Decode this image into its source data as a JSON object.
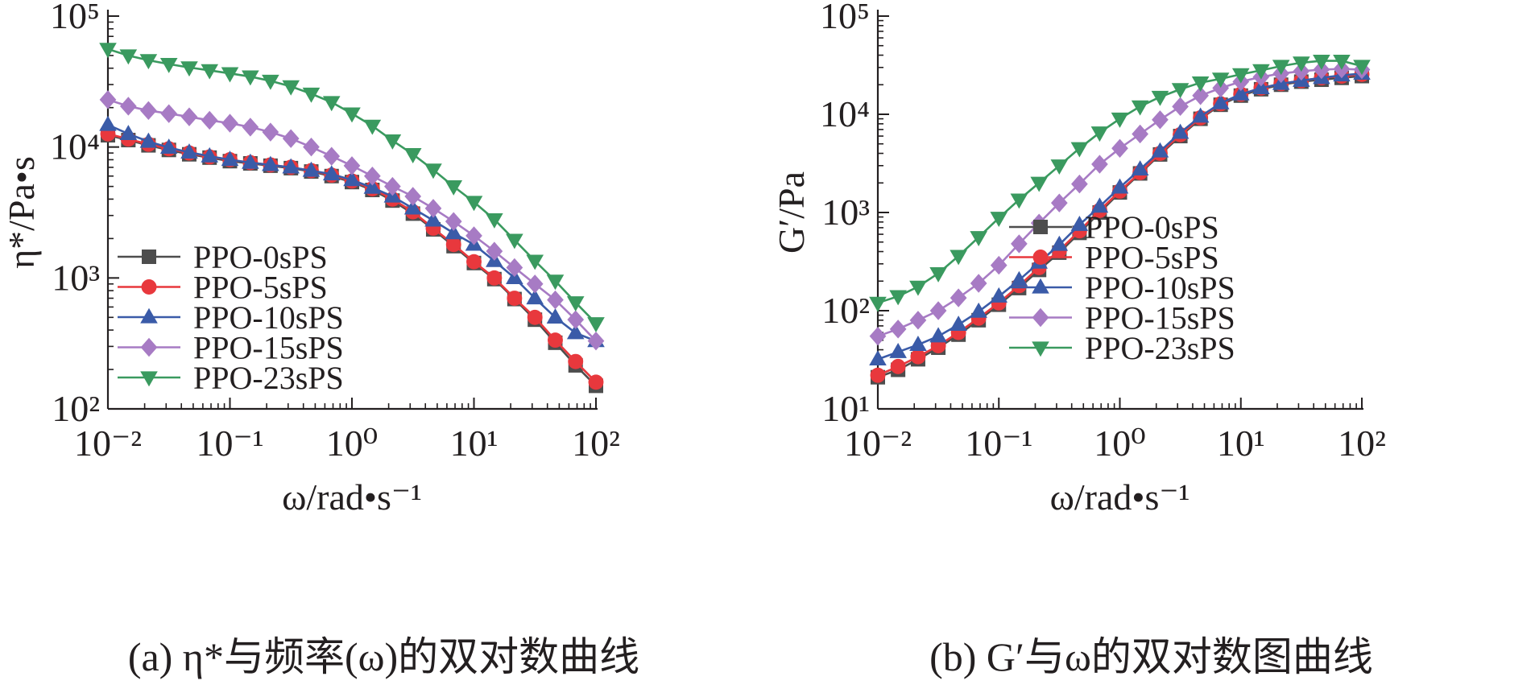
{
  "series_colors": {
    "PPO-0sPS": "#4d4d4d",
    "PPO-5sPS": "#e8383d",
    "PPO-10sPS": "#3a5ba8",
    "PPO-15sPS": "#a77bc4",
    "PPO-23sPS": "#3a9a5f"
  },
  "series_markers": {
    "PPO-0sPS": "square",
    "PPO-5sPS": "circle",
    "PPO-10sPS": "triangle-up",
    "PPO-15sPS": "diamond",
    "PPO-23sPS": "triangle-down"
  },
  "chart_data": [
    {
      "type": "line",
      "caption": "(a) η*与频率(ω)的双对数曲线",
      "xlabel": "ω/rad•s⁻¹",
      "ylabel": "η*/Pa•s",
      "xscale": "log",
      "yscale": "log",
      "xlim": [
        0.01,
        100
      ],
      "ylim": [
        100,
        100000
      ],
      "xticks": [
        0.01,
        0.1,
        1,
        10,
        100
      ],
      "yticks": [
        100,
        1000,
        10000,
        100000
      ],
      "xtick_labels": [
        "10⁻²",
        "10⁻¹",
        "10⁰",
        "10¹",
        "10²"
      ],
      "ytick_labels": [
        "10²",
        "10³",
        "10⁴",
        "10⁵"
      ],
      "legend_position": "lower-left",
      "x": [
        0.01,
        0.0147,
        0.0215,
        0.0316,
        0.0464,
        0.0681,
        0.1,
        0.147,
        0.215,
        0.316,
        0.464,
        0.681,
        1.0,
        1.47,
        2.15,
        3.16,
        4.64,
        6.81,
        10,
        14.7,
        21.5,
        31.6,
        46.4,
        68.1,
        100
      ],
      "series": [
        {
          "name": "PPO-0sPS",
          "values": [
            12300,
            11300,
            10300,
            9500,
            8800,
            8300,
            7800,
            7500,
            7200,
            6900,
            6500,
            6000,
            5400,
            4700,
            3900,
            3100,
            2350,
            1750,
            1300,
            980,
            690,
            480,
            320,
            215,
            150
          ]
        },
        {
          "name": "PPO-5sPS",
          "values": [
            12600,
            11500,
            10500,
            9700,
            9000,
            8400,
            8000,
            7600,
            7300,
            7000,
            6600,
            6100,
            5500,
            4800,
            4000,
            3200,
            2400,
            1800,
            1330,
            1000,
            700,
            500,
            335,
            230,
            160
          ]
        },
        {
          "name": "PPO-10sPS",
          "values": [
            14800,
            12600,
            11000,
            9900,
            9100,
            8500,
            8000,
            7600,
            7300,
            7000,
            6600,
            6200,
            5600,
            4900,
            4200,
            3400,
            2750,
            2200,
            1800,
            1350,
            1000,
            700,
            500,
            380,
            330
          ]
        },
        {
          "name": "PPO-15sPS",
          "values": [
            23000,
            20500,
            19000,
            18000,
            17000,
            16000,
            15200,
            14200,
            13000,
            11600,
            10000,
            8500,
            7200,
            6000,
            5000,
            4200,
            3400,
            2700,
            2100,
            1600,
            1200,
            900,
            680,
            480,
            330
          ]
        },
        {
          "name": "PPO-23sPS",
          "values": [
            56000,
            50000,
            46000,
            43000,
            40500,
            38500,
            36500,
            34500,
            32000,
            29000,
            25500,
            22000,
            18000,
            14500,
            11200,
            8800,
            6700,
            5000,
            3800,
            2800,
            1950,
            1350,
            950,
            650,
            450
          ]
        }
      ]
    },
    {
      "type": "line",
      "caption": "(b) G′与ω的双对数图曲线",
      "xlabel": "ω/rad•s⁻¹",
      "ylabel": "G′/Pa",
      "xscale": "log",
      "yscale": "log",
      "xlim": [
        0.01,
        100
      ],
      "ylim": [
        10,
        100000
      ],
      "xticks": [
        0.01,
        0.1,
        1,
        10,
        100
      ],
      "yticks": [
        10,
        100,
        1000,
        10000,
        100000
      ],
      "xtick_labels": [
        "10⁻²",
        "10⁻¹",
        "10⁰",
        "10¹",
        "10²"
      ],
      "ytick_labels": [
        "10¹",
        "10²",
        "10³",
        "10⁴",
        "10⁵"
      ],
      "legend_position": "right",
      "x": [
        0.01,
        0.0147,
        0.0215,
        0.0316,
        0.0464,
        0.0681,
        0.1,
        0.147,
        0.215,
        0.316,
        0.464,
        0.681,
        1.0,
        1.47,
        2.15,
        3.16,
        4.64,
        6.81,
        10,
        14.7,
        21.5,
        31.6,
        46.4,
        68.1,
        100
      ],
      "series": [
        {
          "name": "PPO-0sPS",
          "values": [
            21,
            25,
            32,
            42,
            57,
            80,
            115,
            170,
            260,
            390,
            620,
            1000,
            1600,
            2500,
            3900,
            6000,
            9000,
            12500,
            15500,
            18000,
            20000,
            21500,
            22500,
            23500,
            24500
          ]
        },
        {
          "name": "PPO-5sPS",
          "values": [
            22,
            27,
            34,
            44,
            60,
            84,
            120,
            180,
            275,
            410,
            650,
            1050,
            1650,
            2550,
            4000,
            6200,
            9200,
            12800,
            16000,
            18500,
            20500,
            22000,
            23500,
            24500,
            25500
          ]
        },
        {
          "name": "PPO-10sPS",
          "values": [
            32,
            38,
            45,
            55,
            72,
            98,
            140,
            205,
            310,
            470,
            750,
            1150,
            1800,
            2750,
            4200,
            6500,
            9500,
            13000,
            16000,
            18500,
            20500,
            22000,
            23500,
            25000,
            26000
          ]
        },
        {
          "name": "PPO-15sPS",
          "values": [
            55,
            65,
            80,
            100,
            135,
            190,
            290,
            480,
            780,
            1250,
            1950,
            3100,
            4500,
            6300,
            8800,
            12000,
            15500,
            18500,
            21500,
            24000,
            26000,
            27500,
            28500,
            29000,
            28500
          ]
        },
        {
          "name": "PPO-23sPS",
          "values": [
            120,
            140,
            175,
            240,
            360,
            560,
            880,
            1350,
            2000,
            3000,
            4500,
            6500,
            9000,
            12000,
            15000,
            18000,
            21000,
            23000,
            25500,
            28000,
            31000,
            33500,
            35000,
            35000,
            31000
          ]
        }
      ]
    }
  ]
}
